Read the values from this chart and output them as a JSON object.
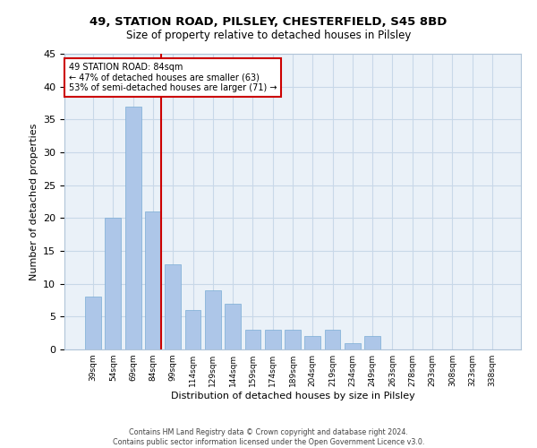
{
  "title": "49, STATION ROAD, PILSLEY, CHESTERFIELD, S45 8BD",
  "subtitle": "Size of property relative to detached houses in Pilsley",
  "xlabel": "Distribution of detached houses by size in Pilsley",
  "ylabel": "Number of detached properties",
  "categories": [
    "39sqm",
    "54sqm",
    "69sqm",
    "84sqm",
    "99sqm",
    "114sqm",
    "129sqm",
    "144sqm",
    "159sqm",
    "174sqm",
    "189sqm",
    "204sqm",
    "219sqm",
    "234sqm",
    "249sqm",
    "263sqm",
    "278sqm",
    "293sqm",
    "308sqm",
    "323sqm",
    "338sqm"
  ],
  "values": [
    8,
    20,
    37,
    21,
    13,
    6,
    9,
    7,
    3,
    3,
    3,
    2,
    3,
    1,
    2,
    0,
    0,
    0,
    0,
    0,
    0
  ],
  "bar_color": "#adc6e8",
  "bar_edge_color": "#7aacd4",
  "red_line_index": 3,
  "red_line_color": "#cc0000",
  "annotation_text": "49 STATION ROAD: 84sqm\n← 47% of detached houses are smaller (63)\n53% of semi-detached houses are larger (71) →",
  "annotation_box_edge": "#cc0000",
  "ylim": [
    0,
    45
  ],
  "yticks": [
    0,
    5,
    10,
    15,
    20,
    25,
    30,
    35,
    40,
    45
  ],
  "grid_color": "#c8d8e8",
  "bg_color": "#eaf1f8",
  "footer_line1": "Contains HM Land Registry data © Crown copyright and database right 2024.",
  "footer_line2": "Contains public sector information licensed under the Open Government Licence v3.0."
}
